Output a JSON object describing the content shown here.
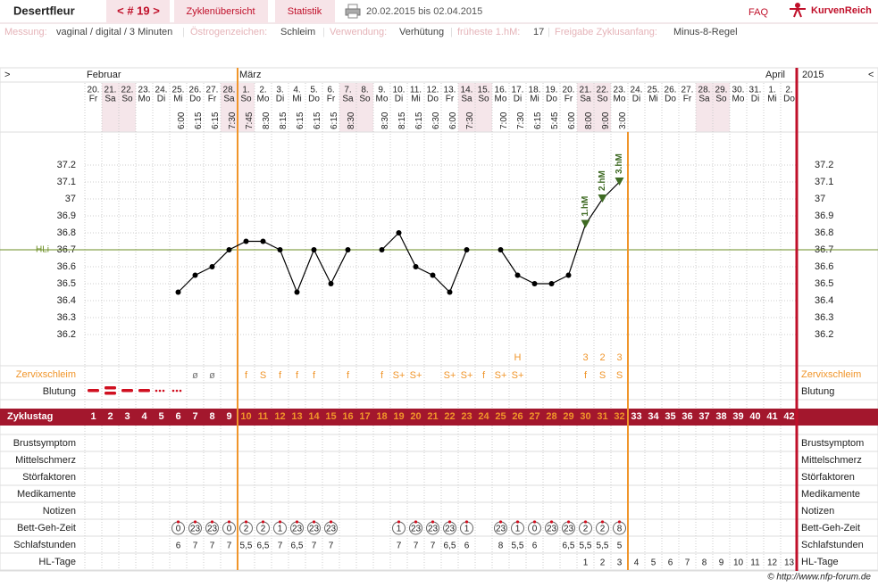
{
  "header": {
    "user": "Desertfleur",
    "cycle_nav": "< # 19 >",
    "tabs": [
      "Zyklenübersicht",
      "Statistik"
    ],
    "date_range": "20.02.2015 bis 02.04.2015",
    "faq": "FAQ",
    "logo": "KurvenReich"
  },
  "settings": [
    {
      "label": "Messung:",
      "value": "vaginal / digital / 3 Minuten"
    },
    {
      "label": "Östrogenzeichen:",
      "value": "Schleim"
    },
    {
      "label": "Verwendung:",
      "value": "Verhütung"
    },
    {
      "label": "früheste 1.hM:",
      "value": "17"
    },
    {
      "label": "Freigabe Zyklusanfang:",
      "value": "Minus-8-Regel"
    }
  ],
  "calendar": {
    "prev": ">",
    "next": "<",
    "year": "2015",
    "days": [
      {
        "date": "20.",
        "weekday": "Fr",
        "month": "Februar"
      },
      {
        "date": "21.",
        "weekday": "Sa"
      },
      {
        "date": "22.",
        "weekday": "So"
      },
      {
        "date": "23.",
        "weekday": "Mo"
      },
      {
        "date": "24.",
        "weekday": "Di"
      },
      {
        "date": "25.",
        "weekday": "Mi",
        "time": "6:00"
      },
      {
        "date": "26.",
        "weekday": "Do",
        "time": "6:15"
      },
      {
        "date": "27.",
        "weekday": "Fr",
        "time": "6:15"
      },
      {
        "date": "28.",
        "weekday": "Sa",
        "time": "7:30"
      },
      {
        "date": "1.",
        "weekday": "So",
        "time": "7:45",
        "month": "März"
      },
      {
        "date": "2.",
        "weekday": "Mo",
        "time": "8:30"
      },
      {
        "date": "3.",
        "weekday": "Di",
        "time": "8:15"
      },
      {
        "date": "4.",
        "weekday": "Mi",
        "time": "6:15"
      },
      {
        "date": "5.",
        "weekday": "Do",
        "time": "6:15"
      },
      {
        "date": "6.",
        "weekday": "Fr",
        "time": "6:15"
      },
      {
        "date": "7.",
        "weekday": "Sa",
        "time": "8:30"
      },
      {
        "date": "8.",
        "weekday": "So"
      },
      {
        "date": "9.",
        "weekday": "Mo",
        "time": "8:30"
      },
      {
        "date": "10.",
        "weekday": "Di",
        "time": "8:15"
      },
      {
        "date": "11.",
        "weekday": "Mi",
        "time": "6:15"
      },
      {
        "date": "12.",
        "weekday": "Do",
        "time": "6:30"
      },
      {
        "date": "13.",
        "weekday": "Fr",
        "time": "6:00"
      },
      {
        "date": "14.",
        "weekday": "Sa",
        "time": "7:30"
      },
      {
        "date": "15.",
        "weekday": "So"
      },
      {
        "date": "16.",
        "weekday": "Mo",
        "time": "7:00"
      },
      {
        "date": "17.",
        "weekday": "Di",
        "time": "7:30"
      },
      {
        "date": "18.",
        "weekday": "Mi",
        "time": "6:15"
      },
      {
        "date": "19.",
        "weekday": "Do",
        "time": "5:45"
      },
      {
        "date": "20.",
        "weekday": "Fr",
        "time": "6:00"
      },
      {
        "date": "21.",
        "weekday": "Sa",
        "time": "8:00"
      },
      {
        "date": "22.",
        "weekday": "So",
        "time": "9:00"
      },
      {
        "date": "23.",
        "weekday": "Mo",
        "time": "3:00"
      },
      {
        "date": "24.",
        "weekday": "Di"
      },
      {
        "date": "25.",
        "weekday": "Mi"
      },
      {
        "date": "26.",
        "weekday": "Do"
      },
      {
        "date": "27.",
        "weekday": "Fr"
      },
      {
        "date": "28.",
        "weekday": "Sa"
      },
      {
        "date": "29.",
        "weekday": "So"
      },
      {
        "date": "30.",
        "weekday": "Mo"
      },
      {
        "date": "31.",
        "weekday": "Di"
      },
      {
        "date": "1.",
        "weekday": "Mi",
        "month": "April"
      },
      {
        "date": "2.",
        "weekday": "Do"
      }
    ]
  },
  "chart_data": {
    "type": "line",
    "x": [
      1,
      2,
      3,
      4,
      5,
      6,
      7,
      8,
      9,
      10,
      11,
      12,
      13,
      14,
      15,
      16,
      17,
      18,
      19,
      20,
      21,
      22,
      23,
      24,
      25,
      26,
      27,
      28,
      29,
      30,
      31,
      32,
      33,
      34,
      35,
      36,
      37,
      38,
      39,
      40,
      41,
      42
    ],
    "values": [
      null,
      null,
      null,
      null,
      null,
      36.45,
      36.55,
      36.6,
      36.7,
      36.75,
      36.75,
      36.7,
      36.45,
      36.7,
      36.5,
      36.7,
      null,
      36.7,
      36.8,
      36.6,
      36.55,
      36.45,
      36.7,
      null,
      36.7,
      36.55,
      36.5,
      36.5,
      36.55,
      36.85,
      37.0,
      37.1,
      null,
      null,
      null,
      null,
      null,
      null,
      null,
      null,
      null,
      null
    ],
    "color": "#000000",
    "xlim": [
      0.5,
      42.5
    ],
    "ylim": [
      36.0,
      37.4
    ],
    "yticks": [
      36.2,
      36.3,
      36.4,
      36.5,
      36.6,
      36.7,
      36.8,
      36.9,
      {
        "value": 37.0,
        "label": "37"
      },
      37.1,
      37.2
    ],
    "grid": true,
    "cover_line": {
      "label": "HLi",
      "value": 36.7,
      "color": "#6b8e23"
    },
    "fertile_window": [
      10,
      32
    ],
    "annotations": [
      {
        "x": 30,
        "text": "1.hM"
      },
      {
        "x": 31,
        "text": "2.hM"
      },
      {
        "x": 32,
        "text": "3.hM"
      }
    ]
  },
  "cervix": {
    "label": "Zervixschleim",
    "values": [
      null,
      null,
      null,
      null,
      null,
      null,
      "ø",
      "ø",
      null,
      "f",
      "S",
      "f",
      "f",
      "f",
      null,
      "f",
      null,
      "f",
      "S+",
      "S+",
      null,
      "S+",
      "S+",
      "f",
      "S+",
      "S+",
      null,
      null,
      null,
      "f",
      "S",
      "S",
      null,
      null,
      null,
      null,
      null,
      null,
      null,
      null,
      null,
      null
    ],
    "marks": [
      null,
      null,
      null,
      null,
      null,
      null,
      null,
      null,
      null,
      null,
      null,
      null,
      null,
      null,
      null,
      null,
      null,
      null,
      null,
      null,
      null,
      null,
      null,
      null,
      null,
      "H",
      null,
      null,
      null,
      "3",
      "2",
      "3",
      null,
      null,
      null,
      null,
      null,
      null,
      null,
      null,
      null,
      null
    ]
  },
  "bleeding_label": "Blutung",
  "cycle_day_label": "Zyklustag",
  "lower_rows": [
    {
      "label": "Brustsymptom"
    },
    {
      "label": "Mittelschmerz"
    },
    {
      "label": "Störfaktoren"
    },
    {
      "label": "Medikamente"
    },
    {
      "label": "Notizen"
    },
    {
      "label": "Bett-Geh-Zeit",
      "style": "circle",
      "values": [
        null,
        null,
        null,
        null,
        null,
        0,
        23,
        23,
        0,
        2,
        2,
        1,
        23,
        23,
        23,
        null,
        null,
        null,
        1,
        23,
        23,
        23,
        1,
        null,
        23,
        1,
        0,
        23,
        23,
        2,
        2,
        8,
        null,
        null,
        null,
        null,
        null,
        null,
        null,
        null,
        null,
        null
      ]
    },
    {
      "label": "Schlafstunden",
      "values": [
        null,
        null,
        null,
        null,
        null,
        "6",
        "7",
        "7",
        "7",
        "5,5",
        "6,5",
        "7",
        "6,5",
        "7",
        "7",
        null,
        null,
        null,
        "7",
        "7",
        "7",
        "6,5",
        "6",
        null,
        "8",
        "5,5",
        "6",
        null,
        "6,5",
        "5,5",
        "5,5",
        "5",
        null,
        null,
        null,
        null,
        null,
        null,
        null,
        null,
        null,
        null
      ]
    },
    {
      "label": "HL-Tage",
      "values": [
        null,
        null,
        null,
        null,
        null,
        null,
        null,
        null,
        null,
        null,
        null,
        null,
        null,
        null,
        null,
        null,
        null,
        null,
        null,
        null,
        null,
        null,
        null,
        null,
        null,
        null,
        null,
        null,
        null,
        1,
        2,
        3,
        4,
        5,
        6,
        7,
        8,
        9,
        10,
        11,
        12,
        13
      ]
    }
  ],
  "footer": "© http://www.nfp-forum.de"
}
